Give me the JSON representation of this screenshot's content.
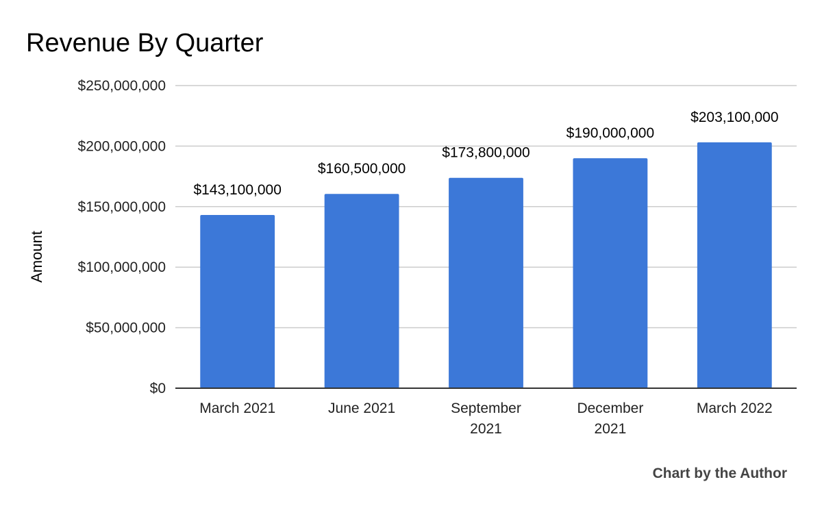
{
  "chart_data": {
    "type": "bar",
    "title": "Revenue By Quarter",
    "xlabel": "",
    "ylabel": "Amount",
    "categories": [
      [
        "March 2021"
      ],
      [
        "June 2021"
      ],
      [
        "September",
        "2021"
      ],
      [
        "December",
        "2021"
      ],
      [
        "March 2022"
      ]
    ],
    "values": [
      143100000,
      160500000,
      173800000,
      190000000,
      203100000
    ],
    "data_labels": [
      "$143,100,000",
      "$160,500,000",
      "$173,800,000",
      "$190,000,000",
      "$203,100,000"
    ],
    "ylim": [
      0,
      250000000
    ],
    "yticks": [
      0,
      50000000,
      100000000,
      150000000,
      200000000,
      250000000
    ],
    "ytick_labels": [
      "$0",
      "$50,000,000",
      "$100,000,000",
      "$150,000,000",
      "$200,000,000",
      "$250,000,000"
    ],
    "grid": true,
    "legend": "none",
    "bar_color": "#3c78d8",
    "gridline_color": "#cccccc",
    "baseline_color": "#333333"
  },
  "credit": "Chart by the Author"
}
